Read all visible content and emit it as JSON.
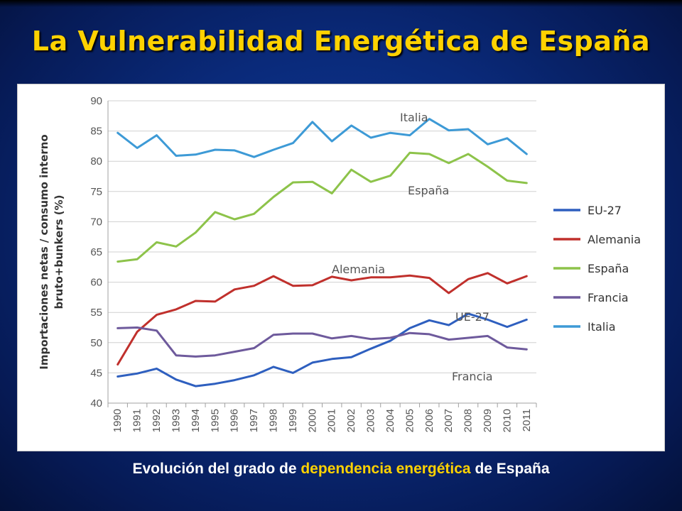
{
  "slide": {
    "title": "La Vulnerabilidad Energética de España",
    "caption_part1": "Evolución del grado de ",
    "caption_highlight": "dependencia energética",
    "caption_part2": " de España"
  },
  "chart_data": {
    "type": "line",
    "title": "",
    "xlabel": "",
    "ylabel_line1": "Importaciones netas / consumo interno",
    "ylabel_line2": "bruto+bunkers (%)",
    "ylim": [
      40,
      90
    ],
    "yticks": [
      "40",
      "45",
      "50",
      "55",
      "60",
      "65",
      "70",
      "75",
      "80",
      "85",
      "90"
    ],
    "categories": [
      "1990",
      "1991",
      "1992",
      "1993",
      "1994",
      "1995",
      "1996",
      "1997",
      "1998",
      "1999",
      "2000",
      "2001",
      "2002",
      "2003",
      "2004",
      "2005",
      "2006",
      "2007",
      "2008",
      "2009",
      "2010",
      "2011"
    ],
    "grid": true,
    "legend_position": "right",
    "series": [
      {
        "name": "EU-27",
        "color": "#2e5fbf",
        "values": [
          44.4,
          44.9,
          45.7,
          43.9,
          42.8,
          43.2,
          43.8,
          44.6,
          46.0,
          45.0,
          46.7,
          47.3,
          47.6,
          49.0,
          50.3,
          52.4,
          53.7,
          52.9,
          54.8,
          53.8,
          52.6,
          53.8
        ]
      },
      {
        "name": "Alemania",
        "color": "#c0302c",
        "values": [
          46.4,
          51.8,
          54.6,
          55.5,
          56.9,
          56.8,
          58.8,
          59.4,
          61.0,
          59.4,
          59.5,
          60.9,
          60.3,
          60.8,
          60.8,
          61.1,
          60.7,
          58.2,
          60.5,
          61.5,
          59.8,
          61.0
        ]
      },
      {
        "name": "España",
        "color": "#8dc34a",
        "values": [
          63.4,
          63.8,
          66.6,
          65.9,
          68.2,
          71.6,
          70.4,
          71.3,
          74.1,
          76.5,
          76.6,
          74.7,
          78.6,
          76.6,
          77.6,
          81.4,
          81.2,
          79.7,
          81.2,
          79.1,
          76.8,
          76.4
        ]
      },
      {
        "name": "Francia",
        "color": "#6e5a9c",
        "values": [
          52.4,
          52.5,
          52.0,
          47.9,
          47.7,
          47.9,
          48.5,
          49.1,
          51.3,
          51.5,
          51.5,
          50.7,
          51.1,
          50.6,
          50.8,
          51.6,
          51.4,
          50.5,
          50.8,
          51.1,
          49.2,
          48.9
        ]
      },
      {
        "name": "Italia",
        "color": "#3d9ad6",
        "values": [
          84.7,
          82.2,
          84.3,
          80.9,
          81.1,
          81.9,
          81.8,
          80.7,
          81.9,
          83.0,
          86.5,
          83.3,
          85.9,
          83.9,
          84.7,
          84.3,
          87.0,
          85.1,
          85.3,
          82.8,
          83.8,
          81.2
        ]
      }
    ],
    "annotations": [
      {
        "text": "Italia"
      },
      {
        "text": "España"
      },
      {
        "text": "Alemania"
      },
      {
        "text": "UE-27"
      },
      {
        "text": "Francia"
      }
    ]
  }
}
